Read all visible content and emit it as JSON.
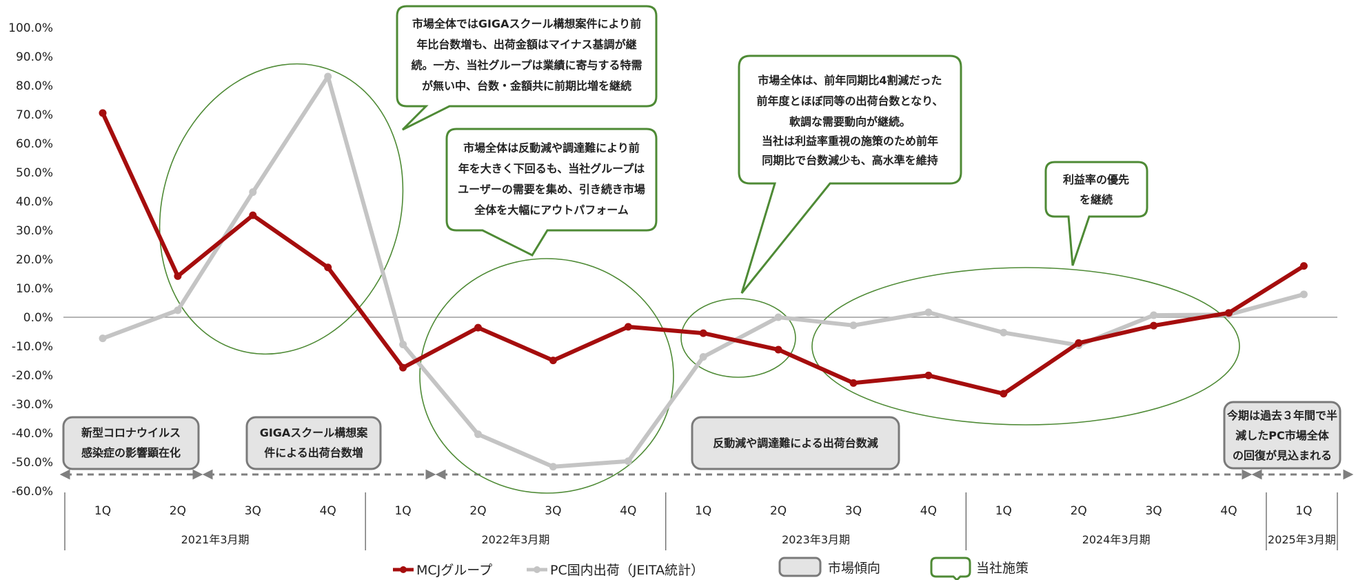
{
  "chart_data": {
    "type": "line",
    "categories": [
      "1Q",
      "2Q",
      "3Q",
      "4Q",
      "1Q",
      "2Q",
      "3Q",
      "4Q",
      "1Q",
      "2Q",
      "3Q",
      "4Q",
      "1Q",
      "2Q",
      "3Q",
      "4Q",
      "1Q"
    ],
    "periods": [
      {
        "label": "2021年3月期",
        "start": 0,
        "end": 3
      },
      {
        "label": "2022年3月期",
        "start": 4,
        "end": 7
      },
      {
        "label": "2023年3月期",
        "start": 8,
        "end": 11
      },
      {
        "label": "2024年3月期",
        "start": 12,
        "end": 15
      },
      {
        "label": "2025年3月期",
        "start": 16,
        "end": 16
      }
    ],
    "ylim": [
      -60,
      100
    ],
    "yticks": [
      "100.0%",
      "90.0%",
      "80.0%",
      "70.0%",
      "60.0%",
      "50.0%",
      "40.0%",
      "30.0%",
      "20.0%",
      "10.0%",
      "0.0%",
      "-10.0%",
      "-20.0%",
      "-30.0%",
      "-40.0%",
      "-50.0%",
      "-60.0%"
    ],
    "series": [
      {
        "name": "MCJグループ",
        "color": "#a50d0d",
        "values": [
          70.5,
          14.2,
          35.2,
          17.2,
          -17.4,
          -3.6,
          -14.9,
          -3.3,
          -5.5,
          -11.2,
          -22.7,
          -20.1,
          -26.4,
          -8.9,
          -2.9,
          1.5,
          17.7
        ]
      },
      {
        "name": "PC国内出荷（JEITA統計）",
        "color": "#c4c4c4",
        "values": [
          -7.3,
          2.4,
          43.2,
          83.1,
          -9.4,
          -40.4,
          -51.6,
          -49.7,
          -13.7,
          0.0,
          -2.8,
          1.7,
          -5.3,
          -9.7,
          0.7,
          0.9,
          7.9
        ]
      }
    ],
    "trend_boxes": [
      {
        "lines": [
          "新型コロナウイルス",
          "感染症の影響顕在化"
        ]
      },
      {
        "lines": [
          "GIGAスクール構想案",
          "件による出荷台数増"
        ]
      },
      {
        "lines": [
          "反動減や調達難による出荷台数減"
        ]
      },
      {
        "lines": [
          "今期は過去３年間で半",
          "減したPC市場全体",
          "の回復が見込まれる"
        ]
      }
    ],
    "callouts": [
      {
        "lines": [
          "市場全体ではGIGAスクール構想案件により前",
          "年比台数増も、出荷金額はマイナス基調が継",
          "続。一方、当社グループは業績に寄与する特需",
          "が無い中、台数・金額共に前期比増を継続"
        ]
      },
      {
        "lines": [
          "市場全体は反動減や調達難により前",
          "年を大きく下回るも、当社グループは",
          "ユーザーの需要を集め、引き続き市場",
          "全体を大幅にアウトパフォーム"
        ]
      },
      {
        "lines": [
          "市場全体は、前年同期比4割減だった",
          "前年度とほぼ同等の出荷台数となり、",
          "軟調な需要動向が継続。",
          "当社は利益率重視の施策のため前年",
          "同期比で台数減少も、高水準を維持"
        ]
      },
      {
        "lines": [
          "利益率の優先",
          "を継続"
        ]
      }
    ],
    "legend": {
      "mcj": "MCJグループ",
      "jeita": "PC国内出荷（JEITA統計）",
      "market": "市場傾向",
      "company": "当社施策"
    },
    "colors": {
      "mcj": "#a50d0d",
      "jeita": "#c4c4c4",
      "green": "#4e8a35",
      "box_fill": "#e4e4e4",
      "box_border": "#7a7a7a"
    }
  }
}
